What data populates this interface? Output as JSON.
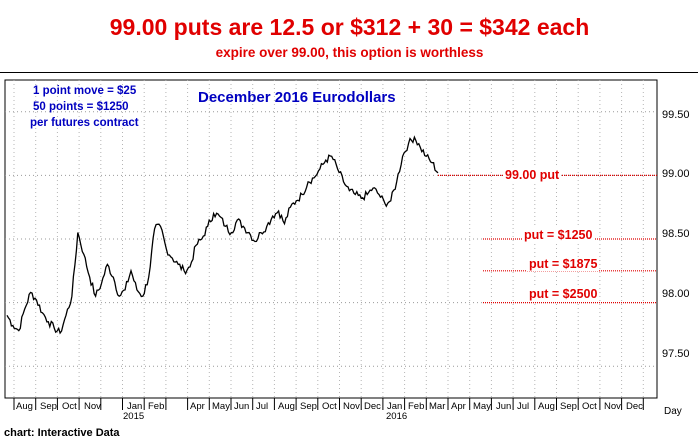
{
  "header": {
    "title": "99.00 puts are 12.5 or $312 + 30 = $342 each",
    "subtitle": "expire over 99.00, this option is worthless"
  },
  "notes": {
    "line1": "1 point move = $25",
    "line2": "50 points = $1250",
    "line3": "per futures contract"
  },
  "credit": "chart: Interactive Data",
  "colors": {
    "accent_red": "#e00000",
    "note_blue": "#0000c0",
    "price_line": "#000000"
  },
  "chart_data": {
    "type": "line",
    "title": "December 2016 Eurodollars",
    "xlabel": "Day",
    "ylabel": "",
    "ylim": [
      97.25,
      99.75
    ],
    "yticks": [
      "97.50",
      "98.00",
      "98.50",
      "99.00",
      "99.50"
    ],
    "grid": true,
    "month_ticks": [
      "Aug",
      "Sep",
      "Oct",
      "Nov",
      "Jan",
      "Feb",
      "Apr",
      "May",
      "Jun",
      "Jul",
      "Aug",
      "Sep",
      "Oct",
      "Nov",
      "Dec",
      "Jan",
      "Feb",
      "Mar",
      "Apr",
      "May",
      "Jun",
      "Jul",
      "Aug",
      "Sep",
      "Oct",
      "Nov",
      "Dec"
    ],
    "year_ticks": [
      "2015",
      "2016"
    ],
    "series": [
      {
        "values": [
          97.9,
          97.82,
          97.78,
          97.95,
          98.08,
          98.02,
          97.92,
          97.85,
          97.8,
          97.76,
          97.9,
          98.05,
          98.55,
          98.38,
          98.2,
          98.05,
          98.15,
          98.3,
          98.2,
          98.05,
          98.1,
          98.25,
          98.1,
          98.05,
          98.2,
          98.58,
          98.6,
          98.42,
          98.35,
          98.3,
          98.25,
          98.28,
          98.45,
          98.5,
          98.6,
          98.7,
          98.68,
          98.6,
          98.55,
          98.65,
          98.6,
          98.55,
          98.48,
          98.55,
          98.6,
          98.68,
          98.72,
          98.62,
          98.75,
          98.8,
          98.85,
          98.95,
          98.98,
          99.05,
          99.12,
          99.15,
          99.05,
          98.95,
          98.88,
          98.85,
          98.82,
          98.85,
          98.9,
          98.85,
          98.78,
          98.8,
          98.95,
          99.15,
          99.25,
          99.3,
          99.22,
          99.15,
          99.1,
          99.02
        ]
      }
    ],
    "horizontal_lines": [
      {
        "value": 99.0,
        "label": "99.00 put"
      },
      {
        "value": 98.5,
        "label": "put = $1250"
      },
      {
        "value": 98.25,
        "label": "put = $1875"
      },
      {
        "value": 98.0,
        "label": "put = $2500"
      }
    ]
  }
}
